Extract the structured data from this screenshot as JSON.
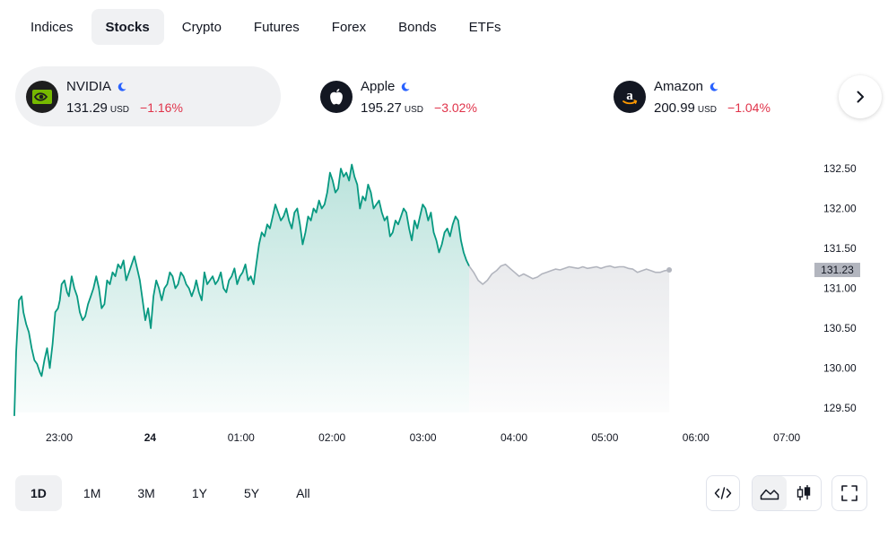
{
  "tabs": [
    {
      "label": "Indices",
      "active": false
    },
    {
      "label": "Stocks",
      "active": true
    },
    {
      "label": "Crypto",
      "active": false
    },
    {
      "label": "Futures",
      "active": false
    },
    {
      "label": "Forex",
      "active": false
    },
    {
      "label": "Bonds",
      "active": false
    },
    {
      "label": "ETFs",
      "active": false
    }
  ],
  "cards": [
    {
      "name": "NVIDIA",
      "price": "131.29",
      "currency": "USD",
      "change": "−1.16%",
      "logo_icon": "nvidia-logo-icon",
      "logo_bg": "#1e1e1e",
      "active": true
    },
    {
      "name": "Apple",
      "price": "195.27",
      "currency": "USD",
      "change": "−3.02%",
      "logo_icon": "apple-logo-icon",
      "logo_bg": "#131722",
      "active": false
    },
    {
      "name": "Amazon",
      "price": "200.99",
      "currency": "USD",
      "change": "−1.04%",
      "logo_icon": "amazon-logo-icon",
      "logo_bg": "#131722",
      "active": false
    }
  ],
  "chart_data": {
    "type": "area",
    "x_ticks": [
      "23:00",
      "24",
      "01:00",
      "02:00",
      "03:00",
      "04:00",
      "05:00",
      "06:00",
      "07:00"
    ],
    "y_ticks": [
      "132.50",
      "132.00",
      "131.50",
      "131.00",
      "130.50",
      "130.00",
      "129.50"
    ],
    "ylim": [
      129.3,
      132.7
    ],
    "current_price_label": "131.23",
    "colors": {
      "session_line": "#089981",
      "extended_line": "#b2b5be",
      "badge_bg": "#b2b5be"
    },
    "series": [
      {
        "session": "regular",
        "x": [
          0,
          0.02,
          0.05,
          0.08,
          0.1,
          0.13,
          0.16,
          0.19,
          0.22,
          0.25,
          0.28,
          0.3,
          0.33,
          0.36,
          0.39,
          0.42,
          0.45,
          0.48,
          0.5,
          0.52,
          0.55,
          0.58,
          0.6,
          0.63,
          0.66,
          0.69,
          0.72,
          0.75,
          0.78,
          0.81,
          0.84,
          0.87,
          0.9,
          0.93,
          0.96,
          0.99,
          1.02,
          1.05,
          1.08,
          1.11,
          1.14,
          1.17,
          1.2,
          1.23,
          1.26,
          1.29,
          1.32,
          1.35,
          1.38,
          1.41,
          1.44,
          1.47,
          1.5,
          1.53,
          1.56,
          1.59,
          1.62,
          1.65,
          1.68,
          1.71,
          1.74,
          1.77,
          1.8,
          1.83,
          1.86,
          1.89,
          1.92,
          1.95,
          1.98,
          2.0,
          2.03,
          2.06,
          2.09,
          2.12,
          2.15,
          2.18,
          2.21,
          2.24,
          2.27,
          2.3,
          2.33,
          2.36,
          2.39,
          2.42,
          2.45,
          2.48,
          2.51,
          2.54,
          2.57,
          2.6,
          2.63,
          2.66,
          2.69,
          2.72,
          2.75,
          2.78,
          2.81,
          2.84,
          2.87,
          2.9,
          2.93,
          2.96,
          2.99,
          3.02,
          3.05,
          3.08,
          3.11,
          3.14,
          3.17,
          3.2,
          3.23,
          3.26,
          3.29,
          3.32,
          3.35,
          3.38,
          3.41,
          3.44,
          3.47,
          3.5,
          3.53,
          3.56,
          3.59,
          3.62,
          3.65,
          3.68,
          3.71,
          3.74,
          3.77,
          3.8,
          3.83,
          3.86,
          3.89,
          3.92,
          3.95,
          3.98,
          4.01,
          4.04,
          4.07,
          4.1,
          4.13,
          4.16,
          4.19,
          4.22,
          4.25,
          4.28,
          4.31,
          4.34,
          4.37,
          4.4,
          4.43,
          4.46,
          4.49,
          4.52,
          4.55,
          4.58,
          4.61,
          4.64,
          4.67,
          4.7,
          4.73,
          4.76,
          4.79,
          4.82,
          4.85,
          4.88,
          4.91,
          4.94,
          4.97,
          5.0
        ],
        "y": [
          129.4,
          130.2,
          130.85,
          130.9,
          130.7,
          130.55,
          130.45,
          130.25,
          130.1,
          130.05,
          129.95,
          129.9,
          130.1,
          130.25,
          130.0,
          130.3,
          130.7,
          130.75,
          130.85,
          131.05,
          131.1,
          130.95,
          130.9,
          131.15,
          131.0,
          130.9,
          130.7,
          130.6,
          130.65,
          130.8,
          130.9,
          131.0,
          131.15,
          131.0,
          130.75,
          130.8,
          131.1,
          131.05,
          131.2,
          131.15,
          131.3,
          131.25,
          131.35,
          131.1,
          131.2,
          131.3,
          131.4,
          131.25,
          131.1,
          130.85,
          130.6,
          130.75,
          130.5,
          130.9,
          131.1,
          131.0,
          130.85,
          131.0,
          131.05,
          131.2,
          131.15,
          131.0,
          131.05,
          131.2,
          131.15,
          131.05,
          131.0,
          130.9,
          131.0,
          131.1,
          130.95,
          130.85,
          131.2,
          131.05,
          131.1,
          131.15,
          131.05,
          131.1,
          131.2,
          131.0,
          130.95,
          131.1,
          131.15,
          131.25,
          131.05,
          131.15,
          131.2,
          131.3,
          131.1,
          131.15,
          131.05,
          131.3,
          131.55,
          131.7,
          131.65,
          131.8,
          131.75,
          131.9,
          132.05,
          131.95,
          131.85,
          131.9,
          132.0,
          131.85,
          131.75,
          131.95,
          132.0,
          131.8,
          131.55,
          131.7,
          131.9,
          131.85,
          132.0,
          131.95,
          132.1,
          132.0,
          132.05,
          132.2,
          132.45,
          132.35,
          132.2,
          132.25,
          132.5,
          132.4,
          132.45,
          132.35,
          132.55,
          132.4,
          132.3,
          132.0,
          132.15,
          132.1,
          132.3,
          132.2,
          132.0,
          132.05,
          132.1,
          131.95,
          131.85,
          131.9,
          131.65,
          131.7,
          131.85,
          131.8,
          131.9,
          132.0,
          131.95,
          131.75,
          131.6,
          131.85,
          131.75,
          131.9,
          132.05,
          132.0,
          131.85,
          131.95,
          131.7,
          131.6,
          131.45,
          131.55,
          131.7,
          131.75,
          131.65,
          131.8,
          131.9,
          131.85,
          131.6,
          131.45,
          131.35,
          131.28
        ]
      },
      {
        "session": "extended",
        "x": [
          5.0,
          5.05,
          5.1,
          5.15,
          5.2,
          5.25,
          5.3,
          5.35,
          5.4,
          5.45,
          5.5,
          5.55,
          5.6,
          5.65,
          5.7,
          5.75,
          5.8,
          5.85,
          5.9,
          5.95,
          6.0,
          6.05,
          6.1,
          6.15,
          6.2,
          6.25,
          6.3,
          6.35,
          6.4,
          6.45,
          6.5,
          6.55,
          6.6,
          6.65,
          6.7,
          6.75,
          6.8,
          6.85,
          6.9,
          6.95,
          7.0,
          7.05,
          7.1,
          7.15,
          7.2
        ],
        "y": [
          131.28,
          131.2,
          131.1,
          131.05,
          131.1,
          131.18,
          131.22,
          131.28,
          131.3,
          131.25,
          131.2,
          131.15,
          131.18,
          131.15,
          131.12,
          131.14,
          131.18,
          131.2,
          131.22,
          131.24,
          131.23,
          131.25,
          131.27,
          131.26,
          131.25,
          131.27,
          131.25,
          131.26,
          131.27,
          131.25,
          131.27,
          131.28,
          131.26,
          131.27,
          131.27,
          131.25,
          131.24,
          131.2,
          131.22,
          131.24,
          131.22,
          131.2,
          131.2,
          131.22,
          131.23
        ]
      }
    ]
  },
  "ranges": [
    {
      "label": "1D",
      "active": true
    },
    {
      "label": "1M",
      "active": false
    },
    {
      "label": "3M",
      "active": false
    },
    {
      "label": "1Y",
      "active": false
    },
    {
      "label": "5Y",
      "active": false
    },
    {
      "label": "All",
      "active": false
    }
  ],
  "tools": {
    "embed_icon": "code-icon",
    "area_icon": "area-chart-icon",
    "candles_icon": "candlestick-icon",
    "fullscreen_icon": "fullscreen-icon"
  }
}
